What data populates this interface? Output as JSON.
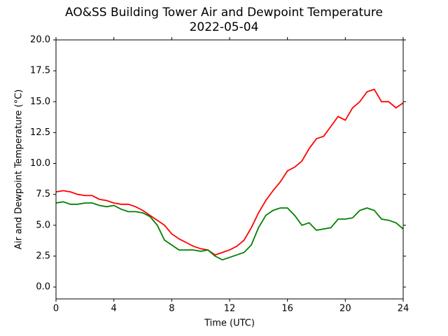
{
  "chart_data": {
    "type": "line",
    "title": "AO&SS Building Tower Air and Dewpoint Temperature",
    "subtitle": "2022-05-04",
    "x_label": "Time (UTC)",
    "y_label": "Air and Dewpoint Temperature (°C)",
    "x": [
      0,
      0.5,
      1,
      1.5,
      2,
      2.5,
      3,
      3.5,
      4,
      4.5,
      5,
      5.5,
      6,
      6.5,
      7,
      7.5,
      8,
      8.5,
      9,
      9.5,
      10,
      10.5,
      11,
      11.5,
      12,
      12.5,
      13,
      13.5,
      14,
      14.5,
      15,
      15.5,
      16,
      16.5,
      17,
      17.5,
      18,
      18.5,
      19,
      19.5,
      20,
      20.5,
      21,
      21.5,
      22,
      22.5,
      23,
      23.5,
      24
    ],
    "series": [
      {
        "color": "#ff0000",
        "values": [
          7.7,
          7.8,
          7.7,
          7.5,
          7.4,
          7.4,
          7.1,
          7.0,
          6.8,
          6.7,
          6.7,
          6.5,
          6.2,
          5.8,
          5.4,
          5.0,
          4.3,
          3.9,
          3.6,
          3.3,
          3.1,
          3.0,
          2.6,
          2.8,
          3.0,
          3.3,
          3.8,
          4.8,
          6.0,
          7.0,
          7.8,
          8.5,
          9.4,
          9.7,
          10.2,
          11.2,
          12.0,
          12.2,
          13.0,
          13.8,
          13.5,
          14.5,
          15.0,
          15.8,
          16.0,
          15.0,
          15.0,
          14.5,
          14.9
        ]
      },
      {
        "color": "#008000",
        "values": [
          6.8,
          6.9,
          6.7,
          6.7,
          6.8,
          6.8,
          6.6,
          6.5,
          6.6,
          6.3,
          6.1,
          6.1,
          6.0,
          5.7,
          5.0,
          3.8,
          3.4,
          3.0,
          3.0,
          3.0,
          2.9,
          3.0,
          2.5,
          2.2,
          2.4,
          2.6,
          2.8,
          3.4,
          4.8,
          5.8,
          6.2,
          6.4,
          6.4,
          5.8,
          5.0,
          5.2,
          4.6,
          4.7,
          4.8,
          5.5,
          5.5,
          5.6,
          6.2,
          6.4,
          6.2,
          5.5,
          5.4,
          5.2,
          4.7
        ]
      }
    ],
    "xlim": [
      0,
      24
    ],
    "xticks": [
      0,
      4,
      8,
      12,
      16,
      20,
      24
    ],
    "ylim": [
      -0.96,
      20
    ],
    "yticks": [
      {
        "value": 0,
        "label": "0.0"
      },
      2.5,
      {
        "value": 5,
        "label": "5.0"
      },
      7.5,
      {
        "value": 10,
        "label": "10.0"
      },
      12.5,
      {
        "value": 15,
        "label": "15.0"
      },
      17.5,
      {
        "value": 20,
        "label": "20.0"
      }
    ]
  }
}
